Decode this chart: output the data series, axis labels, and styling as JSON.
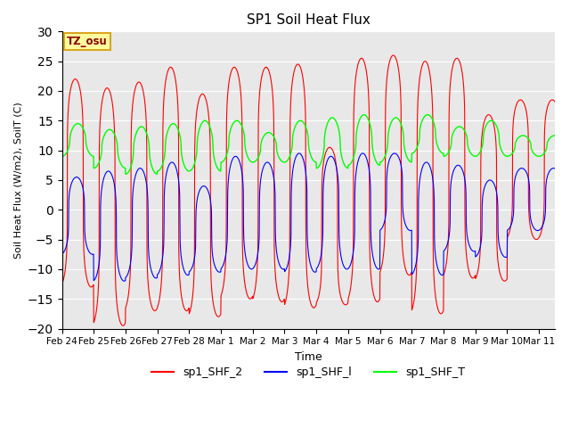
{
  "title": "SP1 Soil Heat Flux",
  "ylabel": "Soil Heat Flux (W/m2), SoilT (C)",
  "xlabel": "Time",
  "ylim": [
    -20,
    30
  ],
  "bg_color": "#e8e8e8",
  "tz_label": "TZ_osu",
  "legend": [
    "sp1_SHF_2",
    "sp1_SHF_l",
    "sp1_SHF_T"
  ],
  "x_tick_labels": [
    "Feb 24",
    "Feb 25",
    "Feb 26",
    "Feb 27",
    "Feb 28",
    "Mar 1",
    "Mar 2",
    "Mar 3",
    "Mar 4",
    "Mar 5",
    "Mar 6",
    "Mar 7",
    "Mar 8",
    "Mar 9",
    "Mar 10",
    "Mar 11"
  ],
  "num_days": 15.5,
  "pts_per_day": 144,
  "shf2_peaks": [
    22,
    20.5,
    21.5,
    24,
    19.5,
    24,
    24,
    24.5,
    10.5,
    25.5,
    26,
    25,
    25.5,
    16,
    18.5
  ],
  "shf2_troughs": [
    -13,
    -19.5,
    -17,
    -17,
    -18,
    -15,
    -15.5,
    -16.5,
    -16,
    -15.5,
    -11,
    -17.5,
    -11.5,
    -12,
    -5
  ],
  "shfl_peaks": [
    5.5,
    6.5,
    7,
    8,
    4,
    9,
    8,
    9.5,
    9,
    9.5,
    9.5,
    8,
    7.5,
    5,
    7
  ],
  "shfl_troughs": [
    -7.5,
    -12,
    -11.5,
    -11,
    -10.5,
    -10,
    -10,
    -10.5,
    -10,
    -10,
    -3.5,
    -11,
    -7,
    -8,
    -3.5
  ],
  "shft_peaks": [
    14.5,
    13.5,
    14,
    14.5,
    15,
    15,
    13,
    15,
    15.5,
    16,
    15.5,
    16,
    14,
    15,
    12.5
  ],
  "shft_troughs": [
    9,
    7,
    6,
    6.5,
    6.5,
    8,
    8,
    8,
    7,
    7.5,
    8,
    9.5,
    9,
    9,
    9
  ]
}
